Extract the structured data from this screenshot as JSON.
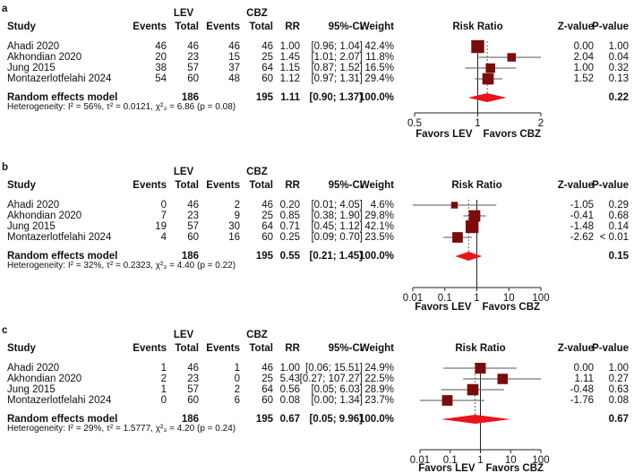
{
  "colors": {
    "square": "#7a0c0c",
    "diamond": "#e8141a",
    "ci_line": "#555555"
  },
  "headers": {
    "group1": "LEV",
    "group2": "CBZ",
    "study": "Study",
    "events": "Events",
    "total": "Total",
    "rr": "RR",
    "ci": "95%-CI",
    "weight": "Weight",
    "plot": "Risk Ratio",
    "z": "Z-value",
    "p": "P-value"
  },
  "favors": {
    "left": "Favors LEV",
    "right": "Favors CBZ"
  },
  "chart_data": [
    {
      "type": "forest",
      "panel": "a",
      "xscale": "log",
      "xlim": [
        0.5,
        2
      ],
      "ticks": [
        "0.5",
        "1",
        "2"
      ],
      "tick_values": [
        0.5,
        1,
        2
      ],
      "studies": [
        {
          "study": "Ahadi 2020",
          "ev1": "46",
          "tot1": "46",
          "ev2": "46",
          "tot2": "46",
          "rr": 1.0,
          "rr_text": "1.00",
          "lo": 0.96,
          "hi": 1.04,
          "ci_text": "[0.96; 1.04]",
          "weight": 42.4,
          "weight_text": "42.4%",
          "z": "0.00",
          "p": "1.00"
        },
        {
          "study": "Akhondian 2020",
          "ev1": "20",
          "tot1": "23",
          "ev2": "15",
          "tot2": "25",
          "rr": 1.45,
          "rr_text": "1.45",
          "lo": 1.01,
          "hi": 2.07,
          "ci_text": "[1.01; 2.07]",
          "weight": 11.8,
          "weight_text": "11.8%",
          "z": "2.04",
          "p": "0.04"
        },
        {
          "study": "Jung 2015",
          "ev1": "38",
          "tot1": "57",
          "ev2": "37",
          "tot2": "64",
          "rr": 1.15,
          "rr_text": "1.15",
          "lo": 0.87,
          "hi": 1.52,
          "ci_text": "[0.87; 1.52]",
          "weight": 16.5,
          "weight_text": "16.5%",
          "z": "1.00",
          "p": "0.32"
        },
        {
          "study": "Montazerlotfelahi 2024",
          "ev1": "54",
          "tot1": "60",
          "ev2": "48",
          "tot2": "60",
          "rr": 1.12,
          "rr_text": "1.12",
          "lo": 0.97,
          "hi": 1.31,
          "ci_text": "[0.97; 1.31]",
          "weight": 29.4,
          "weight_text": "29.4%",
          "z": "1.52",
          "p": "0.13"
        }
      ],
      "pooled": {
        "label": "Random effects model",
        "tot1": "186",
        "tot2": "195",
        "rr": 1.11,
        "rr_text": "1.11",
        "lo": 0.9,
        "hi": 1.37,
        "ci_text": "[0.90; 1.37]",
        "weight_text": "100.0%",
        "p": "0.22"
      },
      "heterogeneity": "Heterogeneity: I² = 56%, τ² = 0.0121, χ²₃ = 6.86 (p = 0.08)"
    },
    {
      "type": "forest",
      "panel": "b",
      "xscale": "log",
      "xlim": [
        0.01,
        100
      ],
      "ticks": [
        "0.01",
        "0.1",
        "1",
        "10",
        "100"
      ],
      "tick_values": [
        0.01,
        0.1,
        1,
        10,
        100
      ],
      "studies": [
        {
          "study": "Ahadi 2020",
          "ev1": "0",
          "tot1": "46",
          "ev2": "2",
          "tot2": "46",
          "rr": 0.2,
          "rr_text": "0.20",
          "lo": 0.01,
          "hi": 4.05,
          "ci_text": "[0.01; 4.05]",
          "weight": 4.6,
          "weight_text": "4.6%",
          "z": "-1.05",
          "p": "0.29"
        },
        {
          "study": "Akhondian 2020",
          "ev1": "7",
          "tot1": "23",
          "ev2": "9",
          "tot2": "25",
          "rr": 0.85,
          "rr_text": "0.85",
          "lo": 0.38,
          "hi": 1.9,
          "ci_text": "[0.38; 1.90]",
          "weight": 29.8,
          "weight_text": "29.8%",
          "z": "-0.41",
          "p": "0.68"
        },
        {
          "study": "Jung 2015",
          "ev1": "19",
          "tot1": "57",
          "ev2": "30",
          "tot2": "64",
          "rr": 0.71,
          "rr_text": "0.71",
          "lo": 0.45,
          "hi": 1.12,
          "ci_text": "[0.45; 1.12]",
          "weight": 42.1,
          "weight_text": "42.1%",
          "z": "-1.48",
          "p": "0.14"
        },
        {
          "study": "Montazerlotfelahi 2024",
          "ev1": "4",
          "tot1": "60",
          "ev2": "16",
          "tot2": "60",
          "rr": 0.25,
          "rr_text": "0.25",
          "lo": 0.09,
          "hi": 0.7,
          "ci_text": "[0.09; 0.70]",
          "weight": 23.5,
          "weight_text": "23.5%",
          "z": "-2.62",
          "p": "< 0.01"
        }
      ],
      "pooled": {
        "label": "Random effects model",
        "tot1": "186",
        "tot2": "195",
        "rr": 0.55,
        "rr_text": "0.55",
        "lo": 0.21,
        "hi": 1.45,
        "ci_text": "[0.21; 1.45]",
        "weight_text": "100.0%",
        "p": "0.15"
      },
      "heterogeneity": "Heterogeneity: I² = 32%, τ² = 0.2323, χ²₃ = 4.40 (p = 0.22)"
    },
    {
      "type": "forest",
      "panel": "c",
      "xscale": "log",
      "xlim": [
        0.01,
        100
      ],
      "ticks": [
        "0.01",
        "0.1",
        "1",
        "10",
        "100"
      ],
      "tick_values": [
        0.01,
        0.1,
        1,
        10,
        100
      ],
      "studies": [
        {
          "study": "Ahadi 2020",
          "ev1": "1",
          "tot1": "46",
          "ev2": "1",
          "tot2": "46",
          "rr": 1.0,
          "rr_text": "1.00",
          "lo": 0.06,
          "hi": 15.51,
          "ci_text": "[0.06; 15.51]",
          "weight": 24.9,
          "weight_text": "24.9%",
          "z": "0.00",
          "p": "1.00"
        },
        {
          "study": "Akhondian 2020",
          "ev1": "2",
          "tot1": "23",
          "ev2": "0",
          "tot2": "25",
          "rr": 5.43,
          "rr_text": "5.43",
          "lo": 0.27,
          "hi": 107.27,
          "ci_text": "[0.27; 107.27]",
          "weight": 22.5,
          "weight_text": "22.5%",
          "z": "1.11",
          "p": "0.27"
        },
        {
          "study": "Jung 2015",
          "ev1": "1",
          "tot1": "57",
          "ev2": "2",
          "tot2": "64",
          "rr": 0.56,
          "rr_text": "0.56",
          "lo": 0.05,
          "hi": 6.03,
          "ci_text": "[0.05; 6.03]",
          "weight": 28.9,
          "weight_text": "28.9%",
          "z": "-0.48",
          "p": "0.63"
        },
        {
          "study": "Montazerlotfelahi 2024",
          "ev1": "0",
          "tot1": "60",
          "ev2": "6",
          "tot2": "60",
          "rr": 0.08,
          "rr_text": "0.08",
          "lo": 0.0,
          "hi": 1.34,
          "ci_text": "[0.00; 1.34]",
          "weight": 23.7,
          "weight_text": "23.7%",
          "z": "-1.76",
          "p": "0.08"
        }
      ],
      "pooled": {
        "label": "Random effects model",
        "tot1": "186",
        "tot2": "195",
        "rr": 0.67,
        "rr_text": "0.67",
        "lo": 0.05,
        "hi": 9.96,
        "ci_text": "[0.05; 9.96]",
        "weight_text": "100.0%",
        "p": "0.67"
      },
      "heterogeneity": "Heterogeneity: I² = 29%, τ² = 1.5777, χ²₃ = 4.20 (p = 0.24)"
    }
  ]
}
